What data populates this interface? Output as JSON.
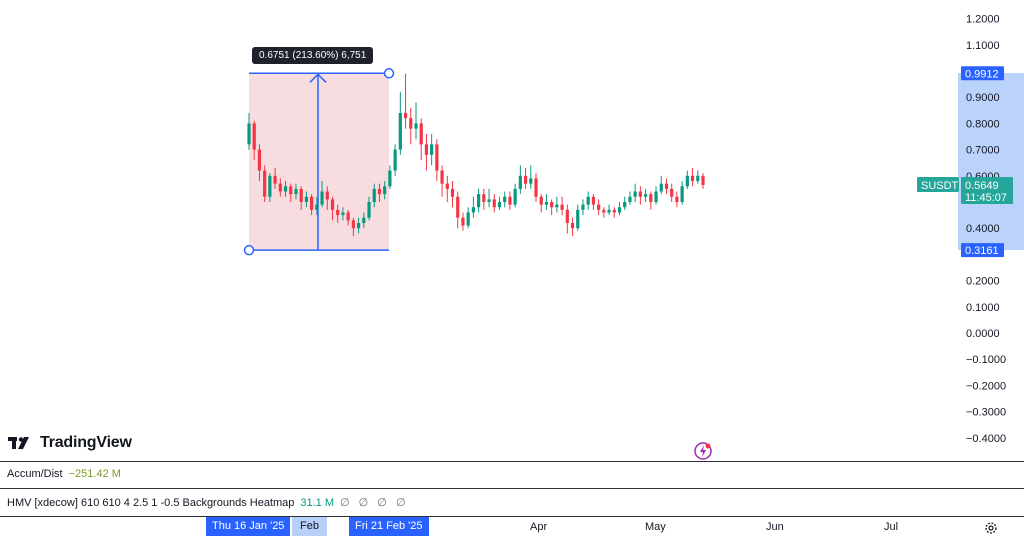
{
  "chart_data": {
    "type": "candlestick",
    "symbol_label": "SUSDT",
    "last_price": "0.5649",
    "countdown": "11:45:07",
    "price_axis_ticks": [
      "1.2000",
      "1.1000",
      "0.9000",
      "0.8000",
      "0.7000",
      "0.6000",
      "0.4000",
      "0.2000",
      "0.1000",
      "0.0000",
      "−0.1000",
      "−0.2000",
      "−0.3000",
      "−0.4000"
    ],
    "measure_high_label": "0.9912",
    "measure_low_label": "0.3161",
    "measure_tooltip": "0.6751 (213.60%) 6,751",
    "measure_high": 0.9912,
    "measure_low": 0.3161,
    "time_labels": [
      "Feb",
      "Apr",
      "May",
      "Jun",
      "Jul"
    ],
    "time_badges": [
      "Thu 16 Jan '25",
      "Fri 21 Feb '25"
    ],
    "candles": [
      [
        0.72,
        0.8,
        0.84,
        0.7
      ],
      [
        0.8,
        0.7,
        0.81,
        0.66
      ],
      [
        0.7,
        0.62,
        0.72,
        0.58
      ],
      [
        0.62,
        0.52,
        0.64,
        0.5
      ],
      [
        0.52,
        0.6,
        0.61,
        0.5
      ],
      [
        0.6,
        0.57,
        0.63,
        0.55
      ],
      [
        0.57,
        0.54,
        0.59,
        0.52
      ],
      [
        0.54,
        0.56,
        0.58,
        0.52
      ],
      [
        0.56,
        0.53,
        0.57,
        0.5
      ],
      [
        0.53,
        0.55,
        0.57,
        0.51
      ],
      [
        0.55,
        0.5,
        0.56,
        0.47
      ],
      [
        0.5,
        0.52,
        0.54,
        0.48
      ],
      [
        0.52,
        0.47,
        0.53,
        0.45
      ],
      [
        0.47,
        0.49,
        0.52,
        0.45
      ],
      [
        0.49,
        0.54,
        0.58,
        0.48
      ],
      [
        0.54,
        0.51,
        0.56,
        0.47
      ],
      [
        0.51,
        0.47,
        0.52,
        0.43
      ],
      [
        0.47,
        0.45,
        0.49,
        0.42
      ],
      [
        0.45,
        0.46,
        0.48,
        0.43
      ],
      [
        0.46,
        0.43,
        0.47,
        0.41
      ],
      [
        0.43,
        0.4,
        0.44,
        0.37
      ],
      [
        0.4,
        0.42,
        0.44,
        0.38
      ],
      [
        0.42,
        0.44,
        0.46,
        0.4
      ],
      [
        0.44,
        0.5,
        0.52,
        0.43
      ],
      [
        0.5,
        0.55,
        0.57,
        0.48
      ],
      [
        0.55,
        0.53,
        0.57,
        0.5
      ],
      [
        0.53,
        0.56,
        0.58,
        0.51
      ],
      [
        0.56,
        0.62,
        0.64,
        0.55
      ],
      [
        0.62,
        0.7,
        0.72,
        0.6
      ],
      [
        0.7,
        0.84,
        0.92,
        0.68
      ],
      [
        0.84,
        0.82,
        0.99,
        0.78
      ],
      [
        0.82,
        0.78,
        0.86,
        0.72
      ],
      [
        0.78,
        0.8,
        0.88,
        0.74
      ],
      [
        0.8,
        0.72,
        0.82,
        0.66
      ],
      [
        0.72,
        0.68,
        0.76,
        0.62
      ],
      [
        0.68,
        0.72,
        0.76,
        0.64
      ],
      [
        0.72,
        0.62,
        0.74,
        0.58
      ],
      [
        0.62,
        0.57,
        0.64,
        0.52
      ],
      [
        0.57,
        0.55,
        0.6,
        0.5
      ],
      [
        0.55,
        0.52,
        0.58,
        0.48
      ],
      [
        0.52,
        0.44,
        0.54,
        0.4
      ],
      [
        0.44,
        0.41,
        0.46,
        0.39
      ],
      [
        0.41,
        0.46,
        0.48,
        0.4
      ],
      [
        0.46,
        0.48,
        0.52,
        0.44
      ],
      [
        0.48,
        0.53,
        0.55,
        0.46
      ],
      [
        0.53,
        0.5,
        0.55,
        0.47
      ],
      [
        0.5,
        0.51,
        0.55,
        0.48
      ],
      [
        0.51,
        0.48,
        0.53,
        0.46
      ],
      [
        0.48,
        0.5,
        0.52,
        0.47
      ],
      [
        0.5,
        0.52,
        0.54,
        0.48
      ],
      [
        0.52,
        0.49,
        0.54,
        0.47
      ],
      [
        0.49,
        0.55,
        0.57,
        0.48
      ],
      [
        0.55,
        0.6,
        0.64,
        0.53
      ],
      [
        0.6,
        0.57,
        0.63,
        0.55
      ],
      [
        0.57,
        0.59,
        0.64,
        0.55
      ],
      [
        0.59,
        0.52,
        0.61,
        0.5
      ],
      [
        0.52,
        0.49,
        0.53,
        0.46
      ],
      [
        0.49,
        0.5,
        0.53,
        0.47
      ],
      [
        0.5,
        0.48,
        0.51,
        0.45
      ],
      [
        0.48,
        0.49,
        0.52,
        0.46
      ],
      [
        0.49,
        0.47,
        0.52,
        0.45
      ],
      [
        0.47,
        0.42,
        0.49,
        0.38
      ],
      [
        0.42,
        0.4,
        0.44,
        0.37
      ],
      [
        0.4,
        0.47,
        0.49,
        0.39
      ],
      [
        0.47,
        0.49,
        0.51,
        0.45
      ],
      [
        0.49,
        0.52,
        0.54,
        0.47
      ],
      [
        0.52,
        0.49,
        0.53,
        0.47
      ],
      [
        0.49,
        0.47,
        0.51,
        0.45
      ],
      [
        0.47,
        0.46,
        0.48,
        0.44
      ],
      [
        0.46,
        0.47,
        0.49,
        0.45
      ],
      [
        0.47,
        0.46,
        0.48,
        0.44
      ],
      [
        0.46,
        0.48,
        0.5,
        0.45
      ],
      [
        0.48,
        0.5,
        0.52,
        0.47
      ],
      [
        0.5,
        0.52,
        0.54,
        0.49
      ],
      [
        0.52,
        0.54,
        0.57,
        0.5
      ],
      [
        0.54,
        0.52,
        0.56,
        0.49
      ],
      [
        0.52,
        0.53,
        0.55,
        0.5
      ],
      [
        0.53,
        0.5,
        0.54,
        0.47
      ],
      [
        0.5,
        0.54,
        0.56,
        0.49
      ],
      [
        0.54,
        0.57,
        0.6,
        0.53
      ],
      [
        0.57,
        0.55,
        0.59,
        0.53
      ],
      [
        0.55,
        0.52,
        0.57,
        0.5
      ],
      [
        0.52,
        0.5,
        0.54,
        0.48
      ],
      [
        0.5,
        0.56,
        0.58,
        0.49
      ],
      [
        0.56,
        0.6,
        0.62,
        0.55
      ],
      [
        0.6,
        0.58,
        0.63,
        0.56
      ],
      [
        0.58,
        0.6,
        0.62,
        0.57
      ],
      [
        0.6,
        0.5649,
        0.61,
        0.55
      ]
    ],
    "up_color": "#089981",
    "down_color": "#f23645",
    "measure_fill": "#f7d7da",
    "measure_line": "#2962ff",
    "price_highlight": "#2962ff",
    "last_price_color": "#26a69a",
    "axis_band_color": "#bbd3fb",
    "y_range": [
      -0.45,
      1.24
    ]
  },
  "logo": {
    "text": "TradingView"
  },
  "indicators": {
    "accum": {
      "name": "Accum/Dist",
      "value": "−251.42 M"
    },
    "hmv": {
      "name": "HMV [xdecow] 610 610 4 2.5 1 -0.5 Backgrounds Heatmap",
      "value": "31.1 M",
      "nulls": "∅ ∅ ∅ ∅"
    }
  },
  "icons": {
    "snapshot": "lightning-icon",
    "settings": "gear-icon"
  }
}
